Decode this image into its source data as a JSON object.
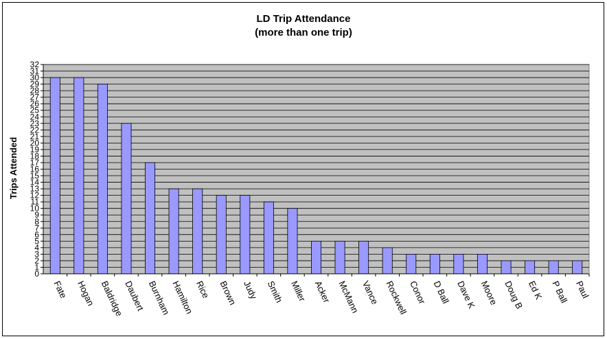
{
  "chart_data": {
    "type": "bar",
    "title": "LD Trip Attendance",
    "subtitle": "(more than one trip)",
    "xlabel": "",
    "ylabel": "Trips Attended",
    "ylim": [
      0,
      32
    ],
    "yticks": [
      0,
      1,
      2,
      3,
      4,
      5,
      6,
      7,
      8,
      9,
      10,
      11,
      12,
      13,
      14,
      15,
      16,
      17,
      18,
      19,
      20,
      21,
      22,
      23,
      24,
      25,
      26,
      27,
      28,
      29,
      30,
      31,
      32
    ],
    "grid": true,
    "legend": "none",
    "categories": [
      "Fate",
      "Hogan",
      "Baldridge",
      "Daubert",
      "Burnham",
      "Hamilton",
      "Rice",
      "Brown",
      "Judy",
      "Smith",
      "Miller",
      "Acker",
      "McMann",
      "Vance",
      "Rockwell",
      "Conor",
      "D Ball",
      "Dave K",
      "Moore",
      "Doug B",
      "Ed K",
      "P Ball",
      "Paul"
    ],
    "values": [
      30,
      30,
      29,
      23,
      17,
      13,
      13,
      12,
      12,
      11,
      10,
      5,
      5,
      5,
      4,
      3,
      3,
      3,
      3,
      2,
      2,
      2,
      2
    ],
    "colors": {
      "bar": "#9999FF",
      "bar_edge": "#000000",
      "plot_bg": "#C0C0C0",
      "grid": "#000000"
    }
  }
}
